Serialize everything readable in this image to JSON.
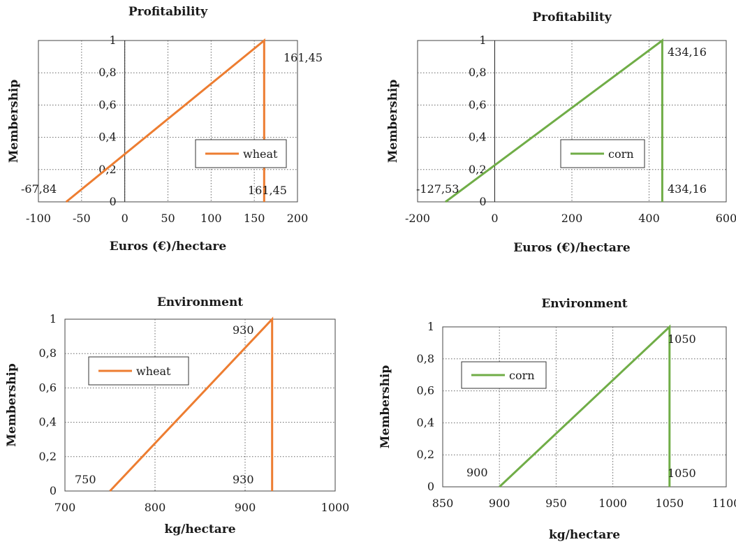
{
  "charts": [
    {
      "title": "Profitability",
      "xlabel": "Euros (€)/hectare",
      "ylabel": "Membership",
      "chart_data": {
        "type": "line",
        "series": [
          {
            "name": "wheat",
            "color": "#ED7D31",
            "points": [
              [
                -67.84,
                0
              ],
              [
                161.45,
                1
              ],
              [
                161.45,
                0
              ]
            ]
          }
        ],
        "xlim": [
          -100,
          200
        ],
        "ylim": [
          0,
          1
        ],
        "xticks": [
          -100,
          -50,
          0,
          50,
          100,
          150,
          200
        ],
        "xtick_labels": [
          "-100",
          "-50",
          "0",
          "50",
          "100",
          "150",
          "200"
        ],
        "yticks": [
          0,
          0.2,
          0.4,
          0.6,
          0.8,
          1
        ],
        "ytick_labels": [
          "0",
          "0,2",
          "0,4",
          "0,6",
          "0,8",
          "1"
        ],
        "grid": true,
        "legend": "right",
        "annotations": [
          "-67,84",
          "161,45",
          "161,45"
        ]
      }
    },
    {
      "title": "Profitability",
      "xlabel": "Euros (€)/hectare",
      "ylabel": "Membership",
      "chart_data": {
        "type": "line",
        "series": [
          {
            "name": "corn",
            "color": "#70AD47",
            "points": [
              [
                -127.53,
                0
              ],
              [
                434.16,
                1
              ],
              [
                434.16,
                0
              ]
            ]
          }
        ],
        "xlim": [
          -200,
          600
        ],
        "ylim": [
          0,
          1
        ],
        "xticks": [
          -200,
          0,
          200,
          400,
          600
        ],
        "xtick_labels": [
          "-200",
          "0",
          "200",
          "400",
          "600"
        ],
        "yticks": [
          0,
          0.2,
          0.4,
          0.6,
          0.8,
          1
        ],
        "ytick_labels": [
          "0",
          "0,2",
          "0,4",
          "0,6",
          "0,8",
          "1"
        ],
        "grid": true,
        "legend": "right",
        "annotations": [
          "-127,53",
          "434,16",
          "434,16"
        ]
      }
    },
    {
      "title": "Environment",
      "xlabel": "kg/hectare",
      "ylabel": "Membership",
      "chart_data": {
        "type": "line",
        "series": [
          {
            "name": "wheat",
            "color": "#ED7D31",
            "points": [
              [
                750,
                0
              ],
              [
                930,
                1
              ],
              [
                930,
                0
              ]
            ]
          }
        ],
        "xlim": [
          700,
          1000
        ],
        "ylim": [
          0,
          1
        ],
        "xticks": [
          700,
          800,
          900,
          1000
        ],
        "xtick_labels": [
          "700",
          "800",
          "900",
          "1000"
        ],
        "yticks": [
          0,
          0.2,
          0.4,
          0.6,
          0.8,
          1
        ],
        "ytick_labels": [
          "0",
          "0,2",
          "0,4",
          "0,6",
          "0,8",
          "1"
        ],
        "grid": true,
        "legend": "left",
        "annotations": [
          "750",
          "930",
          "930"
        ]
      }
    },
    {
      "title": "Environment",
      "xlabel": "kg/hectare",
      "ylabel": "Membership",
      "chart_data": {
        "type": "line",
        "series": [
          {
            "name": "corn",
            "color": "#70AD47",
            "points": [
              [
                900,
                0
              ],
              [
                1050,
                1
              ],
              [
                1050,
                0
              ]
            ]
          }
        ],
        "xlim": [
          850,
          1100
        ],
        "ylim": [
          0,
          1
        ],
        "xticks": [
          850,
          900,
          950,
          1000,
          1050,
          1100
        ],
        "xtick_labels": [
          "850",
          "900",
          "950",
          "1000",
          "1050",
          "1100"
        ],
        "yticks": [
          0,
          0.2,
          0.4,
          0.6,
          0.8,
          1
        ],
        "ytick_labels": [
          "0",
          "0,2",
          "0,4",
          "0,6",
          "0,8",
          "1"
        ],
        "grid": true,
        "legend": "left",
        "annotations": [
          "900",
          "1050",
          "1050"
        ]
      }
    }
  ]
}
